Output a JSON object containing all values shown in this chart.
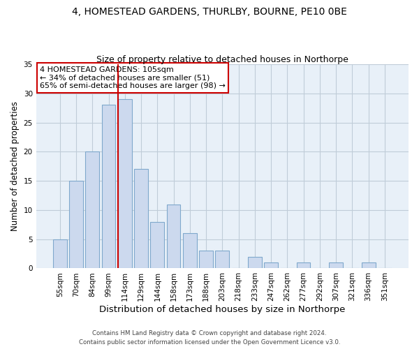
{
  "title": "4, HOMESTEAD GARDENS, THURLBY, BOURNE, PE10 0BE",
  "subtitle": "Size of property relative to detached houses in Northorpe",
  "xlabel": "Distribution of detached houses by size in Northorpe",
  "ylabel": "Number of detached properties",
  "bar_labels": [
    "55sqm",
    "70sqm",
    "84sqm",
    "99sqm",
    "114sqm",
    "129sqm",
    "144sqm",
    "158sqm",
    "173sqm",
    "188sqm",
    "203sqm",
    "218sqm",
    "233sqm",
    "247sqm",
    "262sqm",
    "277sqm",
    "292sqm",
    "307sqm",
    "321sqm",
    "336sqm",
    "351sqm"
  ],
  "bar_values": [
    5,
    15,
    20,
    28,
    29,
    17,
    8,
    11,
    6,
    3,
    3,
    0,
    2,
    1,
    0,
    1,
    0,
    1,
    0,
    1,
    0
  ],
  "bar_color": "#ccd9ee",
  "bar_edge_color": "#7fa8cc",
  "vline_x_index": 4,
  "vline_color": "#cc0000",
  "annotation_text": "4 HOMESTEAD GARDENS: 105sqm\n← 34% of detached houses are smaller (51)\n65% of semi-detached houses are larger (98) →",
  "annotation_box_color": "#ffffff",
  "annotation_box_edge": "#cc0000",
  "ylim": [
    0,
    35
  ],
  "yticks": [
    0,
    5,
    10,
    15,
    20,
    25,
    30,
    35
  ],
  "footer_line1": "Contains HM Land Registry data © Crown copyright and database right 2024.",
  "footer_line2": "Contains public sector information licensed under the Open Government Licence v3.0.",
  "fig_facecolor": "#ffffff",
  "axes_facecolor": "#e8f0f8",
  "grid_color": "#c0ccd8",
  "title_fontsize": 10,
  "subtitle_fontsize": 9,
  "tick_fontsize": 7.5,
  "ylabel_fontsize": 8.5,
  "xlabel_fontsize": 9.5
}
